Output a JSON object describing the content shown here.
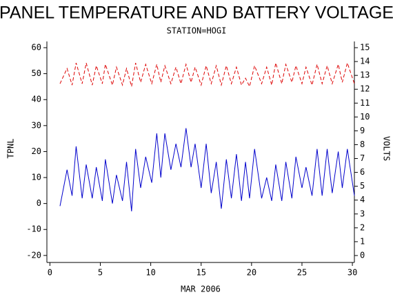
{
  "chart_data": {
    "type": "line",
    "title": "PANEL TEMPERATURE AND BATTERY VOLTAGE",
    "subtitle": "STATION=HOGI",
    "x_label": "MAR 2006",
    "y_label": "TPNL",
    "y2_label": "VOLTS",
    "x": [
      1,
      1.7,
      2.2,
      2.6,
      3.2,
      3.6,
      4.2,
      4.6,
      5.2,
      5.5,
      6.2,
      6.6,
      7.2,
      7.6,
      8.1,
      8.5,
      9,
      9.5,
      10.1,
      10.6,
      11,
      11.4,
      12,
      12.5,
      13,
      13.5,
      14,
      14.4,
      15,
      15.5,
      16,
      16.5,
      17,
      17.5,
      18,
      18.5,
      19,
      19.4,
      19.8,
      20.3,
      21,
      21.5,
      22,
      22.4,
      23,
      23.4,
      24,
      24.4,
      25,
      25.4,
      26,
      26.5,
      27,
      27.5,
      28,
      28.6,
      29,
      29.5,
      30.2
    ],
    "series": [
      {
        "color": "#0000cc",
        "values": [
          -1,
          13,
          3,
          22,
          2,
          15,
          2,
          14,
          1,
          17,
          0,
          11,
          1,
          16,
          -3,
          21,
          6,
          18,
          8,
          27,
          10,
          27,
          13,
          23,
          14,
          29,
          14,
          23,
          6,
          23,
          4,
          16,
          -2,
          17,
          2,
          19,
          1,
          16,
          2,
          21,
          2,
          10,
          1,
          15,
          1,
          16,
          2,
          18,
          6,
          14,
          3,
          21,
          3,
          21,
          4,
          20,
          6,
          21,
          3
        ]
      },
      {
        "color": "#dd0000",
        "axis": "y2",
        "dashed": true,
        "values": [
          12.4,
          13.5,
          12.3,
          13.9,
          12.4,
          13.9,
          12.3,
          13.7,
          12.4,
          13.8,
          12.3,
          13.6,
          12.3,
          13.5,
          12.2,
          13.9,
          12.5,
          13.8,
          12.4,
          13.8,
          12.5,
          13.7,
          12.4,
          13.6,
          12.4,
          13.8,
          12.5,
          13.6,
          12.3,
          13.7,
          12.4,
          13.7,
          12.3,
          13.7,
          12.4,
          13.6,
          12.3,
          12.8,
          12.2,
          13.7,
          12.4,
          13.6,
          12.3,
          13.9,
          12.4,
          13.8,
          12.5,
          13.7,
          12.4,
          13.6,
          12.3,
          13.8,
          12.4,
          13.7,
          12.4,
          13.8,
          12.5,
          13.9,
          12.4
        ]
      }
    ],
    "xlim": [
      -0.3,
      30.2
    ],
    "xticks": [
      0,
      5,
      10,
      15,
      20,
      25,
      30
    ],
    "ylim": [
      -22.7,
      62.4
    ],
    "yticks": [
      -20,
      -10,
      0,
      10,
      20,
      30,
      40,
      50,
      60
    ],
    "y2lim": [
      -0.5,
      15.45
    ],
    "y2ticks": [
      0,
      1,
      2,
      3,
      4,
      5,
      6,
      7,
      8,
      9,
      10,
      11,
      12,
      13,
      14,
      15
    ]
  }
}
